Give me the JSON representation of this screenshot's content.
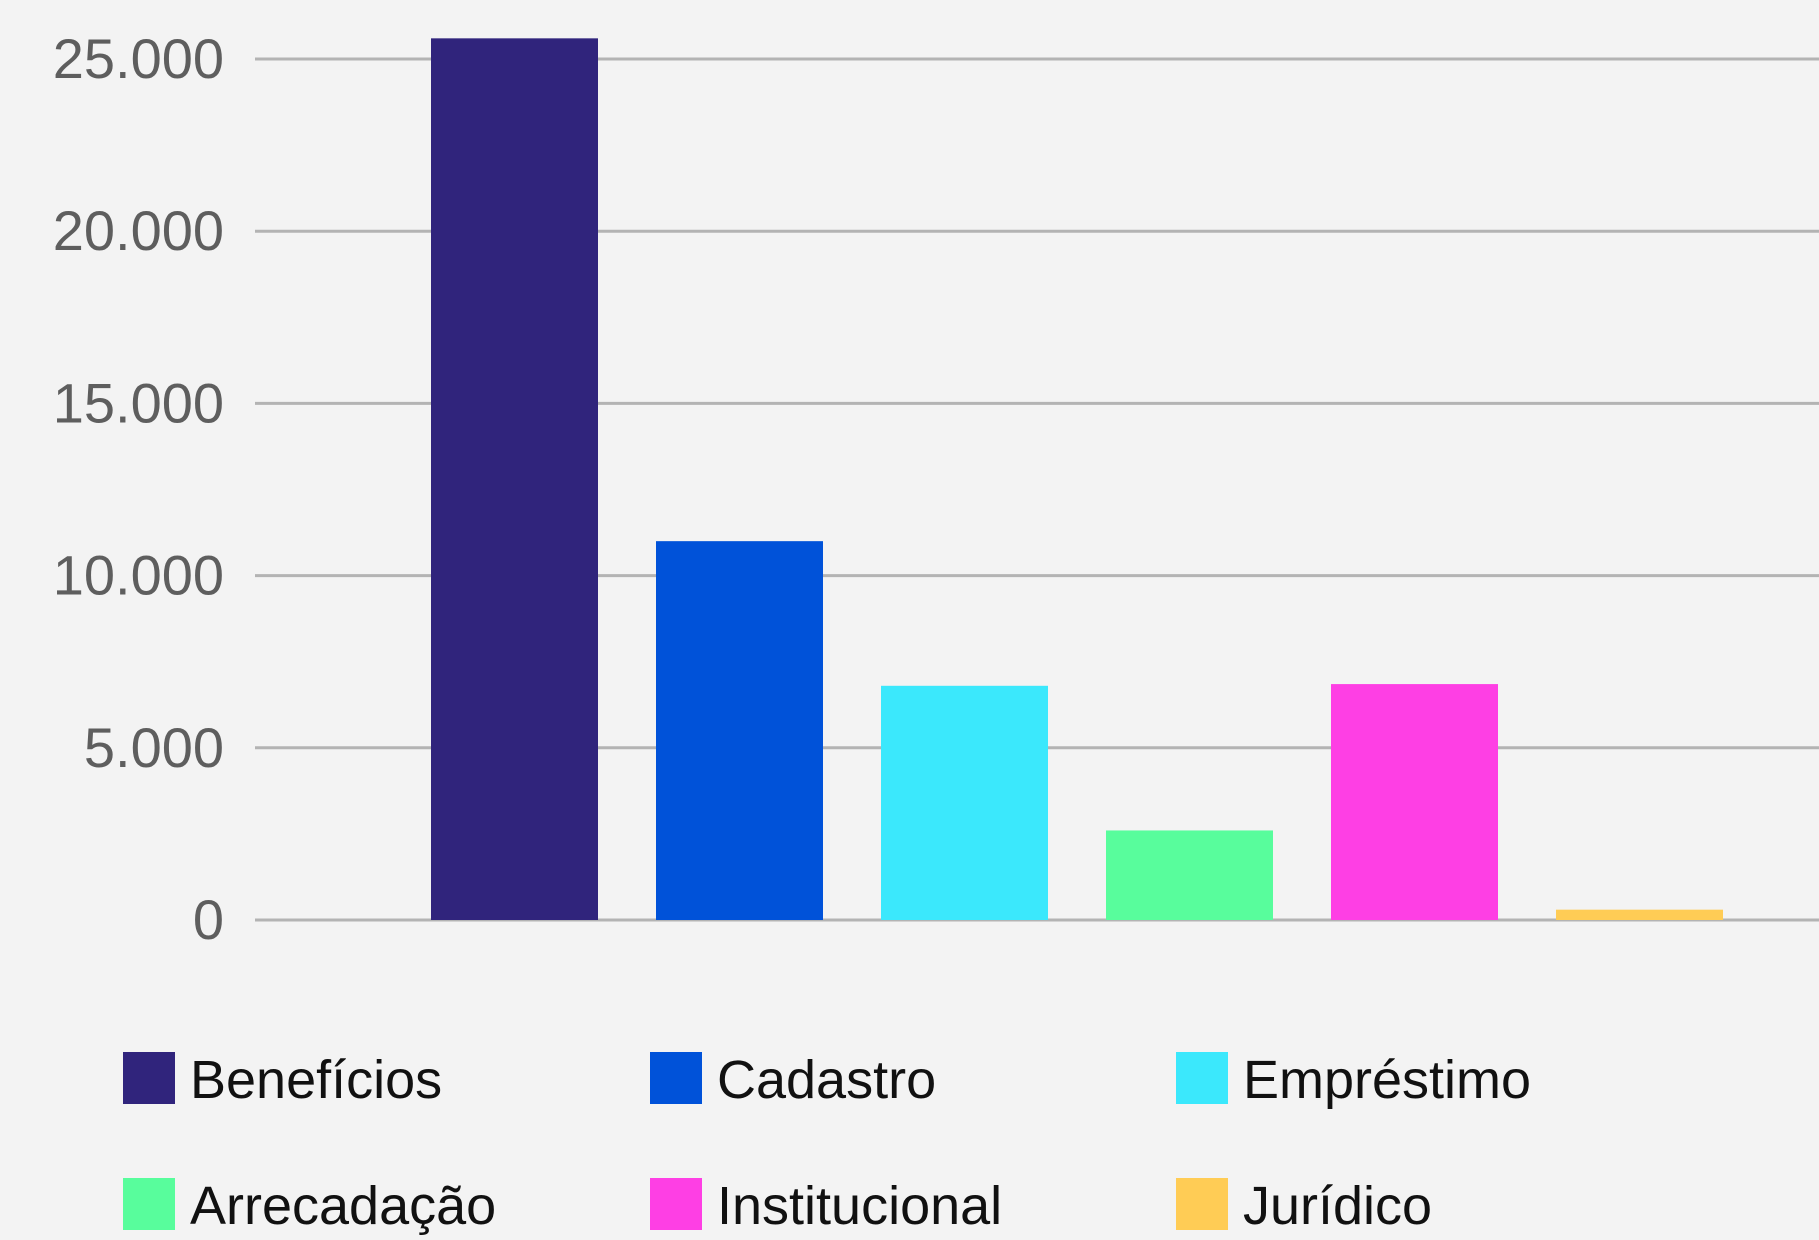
{
  "chart_data": {
    "type": "bar",
    "categories": [
      "Benefícios",
      "Cadastro",
      "Empréstimo",
      "Arrecadação",
      "Institucional",
      "Jurídico"
    ],
    "values": [
      25600,
      11000,
      6800,
      2600,
      6850,
      300
    ],
    "colors": [
      "#30247c",
      "#0052d9",
      "#3be8fc",
      "#58fd9c",
      "#fe3fe4",
      "#ffcc55"
    ],
    "ylim": [
      0,
      25000
    ],
    "yticks": [
      0,
      5000,
      10000,
      15000,
      20000,
      25000
    ],
    "ytick_labels": [
      "0",
      "5.000",
      "10.000",
      "15.000",
      "20.000",
      "25.000"
    ],
    "grid": true,
    "legend_placement": "bottom",
    "title": "",
    "xlabel": "",
    "ylabel": ""
  }
}
